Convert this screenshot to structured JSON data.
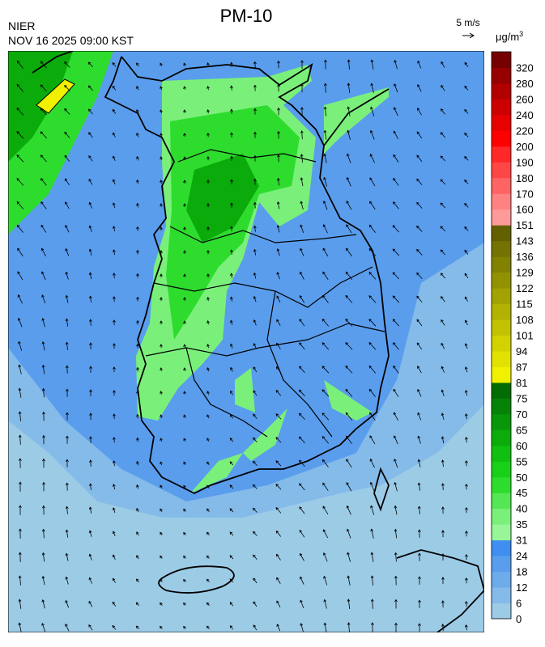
{
  "header": {
    "title": "PM-10",
    "agency": "NIER",
    "timestamp": "NOV 16 2025 09:00 KST"
  },
  "wind_scale": {
    "label": "5 m/s"
  },
  "colorbar": {
    "unit": "μg/m",
    "unit_superscript": "3",
    "levels": [
      0,
      6,
      12,
      18,
      24,
      31,
      35,
      40,
      45,
      50,
      55,
      60,
      65,
      70,
      75,
      81,
      87,
      94,
      101,
      108,
      115,
      122,
      129,
      136,
      143,
      151,
      160,
      170,
      180,
      190,
      200,
      220,
      240,
      260,
      280,
      320
    ],
    "colors": [
      "#9ccbe6",
      "#84bbe9",
      "#6eabeb",
      "#5a9ded",
      "#3f8ef0",
      "#98f598",
      "#7af07a",
      "#55e655",
      "#2edc2e",
      "#18d018",
      "#10bf10",
      "#0aab0a",
      "#089708",
      "#068306",
      "#046c04",
      "#f0f000",
      "#e2e200",
      "#d2d200",
      "#c2c200",
      "#b2b200",
      "#a2a200",
      "#929200",
      "#828200",
      "#747200",
      "#626000",
      "#ff9a9a",
      "#ff8282",
      "#ff6464",
      "#ff4646",
      "#ff2828",
      "#ff0000",
      "#e60000",
      "#cc0000",
      "#b20000",
      "#960000",
      "#760000"
    ]
  }
}
